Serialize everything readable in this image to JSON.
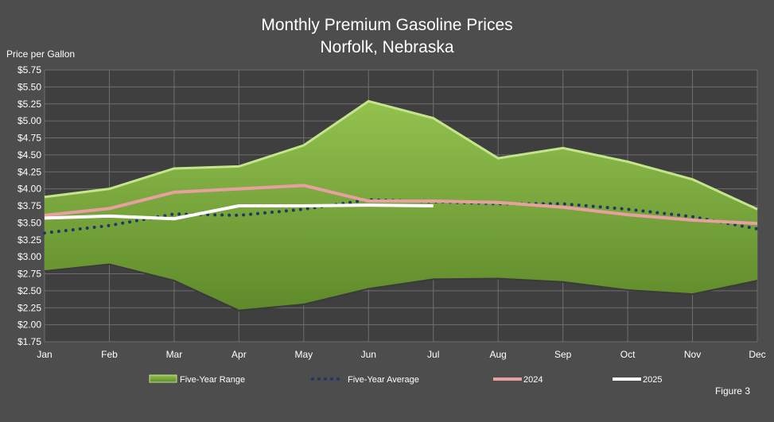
{
  "chart_data": {
    "type": "line",
    "title_line1": "Monthly Premium Gasoline Prices",
    "title_line2": "Norfolk, Nebraska",
    "ylabel": "Price per Gallon",
    "footnote": "Figure 3",
    "ylim": [
      1.75,
      5.75
    ],
    "ytick_step": 0.25,
    "ytick_labels": [
      "$1.75",
      "$2.00",
      "$2.25",
      "$2.50",
      "$2.75",
      "$3.00",
      "$3.25",
      "$3.50",
      "$3.75",
      "$4.00",
      "$4.25",
      "$4.50",
      "$4.75",
      "$5.00",
      "$5.25",
      "$5.50",
      "$5.75"
    ],
    "categories": [
      "Jan",
      "Feb",
      "Mar",
      "Apr",
      "May",
      "Jun",
      "Jul",
      "Aug",
      "Sep",
      "Oct",
      "Nov",
      "Dec"
    ],
    "grid": true,
    "legend_position": "bottom",
    "range": {
      "name": "Five-Year Range",
      "color": "#7cae3c",
      "high": [
        3.88,
        4.0,
        4.3,
        4.33,
        4.64,
        5.29,
        5.04,
        4.45,
        4.6,
        4.4,
        4.14,
        3.7
      ],
      "low": [
        2.79,
        2.89,
        2.65,
        2.21,
        2.3,
        2.53,
        2.67,
        2.68,
        2.63,
        2.51,
        2.45,
        2.65
      ]
    },
    "series": [
      {
        "name": "Five-Year Average",
        "style": "dotted",
        "color": "#1f3864",
        "values": [
          3.35,
          3.46,
          3.63,
          3.61,
          3.7,
          3.84,
          3.81,
          3.78,
          3.78,
          3.7,
          3.59,
          3.41
        ]
      },
      {
        "name": "2024",
        "style": "solid",
        "color": "#e6a0a0",
        "values": [
          3.61,
          3.71,
          3.95,
          4.0,
          4.05,
          3.82,
          3.82,
          3.8,
          3.73,
          3.62,
          3.54,
          3.49
        ]
      },
      {
        "name": "2025",
        "style": "solid",
        "color": "#ffffff",
        "values": [
          3.57,
          3.6,
          3.56,
          3.75,
          3.75,
          3.76,
          3.75,
          null,
          null,
          null,
          null,
          null
        ]
      }
    ]
  }
}
